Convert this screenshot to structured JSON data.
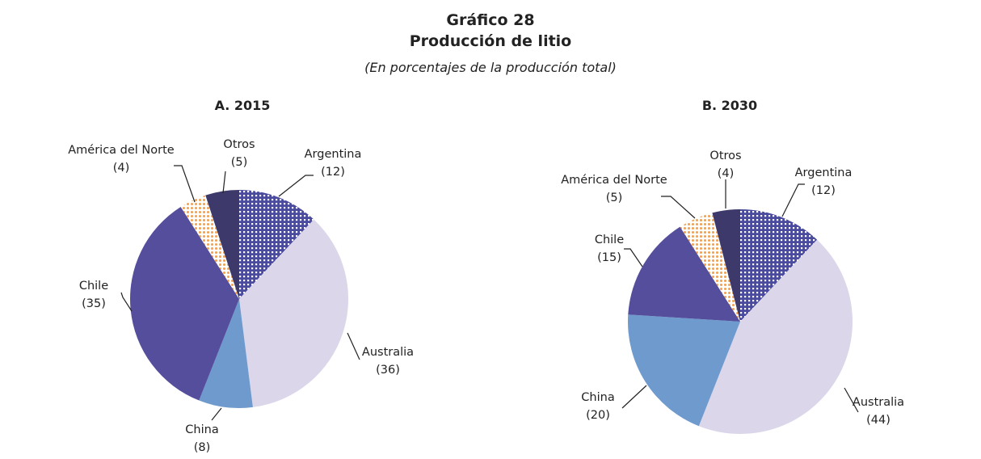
{
  "title": "Gráfico 28",
  "subtitle": "Producción de litio",
  "note": "(En porcentajes de la producción total)",
  "chart_data": [
    {
      "type": "pie",
      "title": "A. 2015",
      "categories": [
        "Argentina",
        "Australia",
        "China",
        "Chile",
        "América del Norte",
        "Otros"
      ],
      "values": [
        12,
        36,
        8,
        35,
        4,
        5
      ],
      "labels": [
        "(12)",
        "(36)",
        "(8)",
        "(35)",
        "(4)",
        "(5)"
      ],
      "colors": [
        "#4a4a9e (white dot pattern)",
        "#dbd6ea",
        "#6f9acd",
        "#544e9c",
        "#f0a050 (dot pattern)",
        "#3d3a6b"
      ]
    },
    {
      "type": "pie",
      "title": "B. 2030",
      "categories": [
        "Argentina",
        "Australia",
        "China",
        "Chile",
        "América del Norte",
        "Otros"
      ],
      "values": [
        12,
        44,
        20,
        15,
        5,
        4
      ],
      "labels": [
        "(12)",
        "(44)",
        "(20)",
        "(15)",
        "(5)",
        "(4)"
      ],
      "colors": [
        "#4a4a9e (white dot pattern)",
        "#dbd6ea",
        "#6f9acd",
        "#544e9c",
        "#f0a050 (dot pattern)",
        "#3d3a6b"
      ]
    }
  ]
}
